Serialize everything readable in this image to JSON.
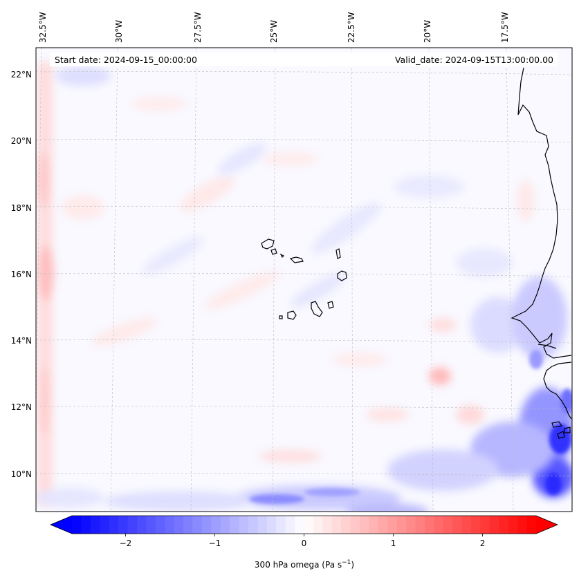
{
  "map": {
    "start_label": "Start date: 2024-09-15_00:00:00",
    "valid_label": "Valid_date: 2024-09-15T13:00:00.00",
    "lon_labels": [
      "32.5°W",
      "30°W",
      "27.5°W",
      "25°W",
      "22.5°W",
      "20°W",
      "17.5°W"
    ],
    "lat_labels": [
      "22°N",
      "20°N",
      "18°N",
      "16°N",
      "14°N",
      "12°N",
      "10°N"
    ],
    "coastline_color": "#000000",
    "gridline_color": "#bbbbbb"
  },
  "colorbar": {
    "ticks": [
      "−2",
      "−1",
      "0",
      "1",
      "2"
    ],
    "tick_values": [
      -2,
      -1,
      0,
      1,
      2
    ],
    "range": [
      -2.6,
      2.6
    ],
    "label_prefix": "300 hPa omega (Pa s",
    "label_exp": "−1",
    "label_suffix": ")",
    "colormap": "bwr",
    "low_color": "#0000ff",
    "mid_color": "#ffffff",
    "high_color": "#ff0000",
    "extend": "both"
  }
}
